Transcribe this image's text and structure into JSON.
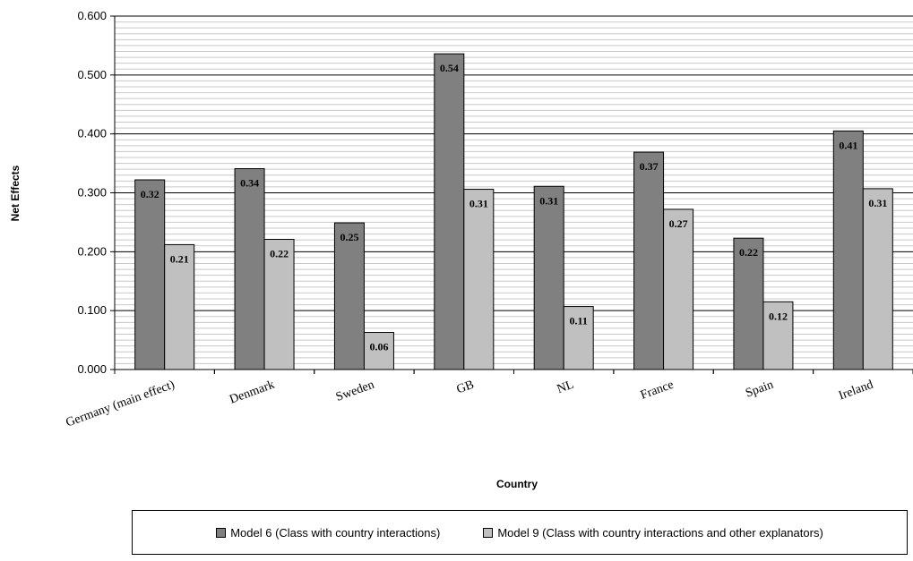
{
  "chart_data": {
    "type": "bar",
    "title": "",
    "xlabel": "Country",
    "ylabel": "Net Effects",
    "ylim": [
      0,
      0.6
    ],
    "yticks": [
      "0.000",
      "0.100",
      "0.200",
      "0.300",
      "0.400",
      "0.500",
      "0.600"
    ],
    "minor_gridlines": true,
    "legend_placement": "bottom",
    "categories": [
      "Germany (main effect)",
      "Denmark",
      "Sweden",
      "GB",
      "NL",
      "France",
      "Spain",
      "Ireland"
    ],
    "series": [
      {
        "name": "Model 6 (Class with country interactions)",
        "color": "#808080",
        "values": [
          0.322,
          0.341,
          0.249,
          0.536,
          0.311,
          0.369,
          0.223,
          0.405
        ],
        "labels": [
          "0.32",
          "0.34",
          "0.25",
          "0.54",
          "0.31",
          "0.37",
          "0.22",
          "0.41"
        ]
      },
      {
        "name": "Model 9 (Class with country interactions and other explanators)",
        "color": "#c0c0c0",
        "values": [
          0.212,
          0.221,
          0.063,
          0.306,
          0.107,
          0.272,
          0.115,
          0.307
        ],
        "labels": [
          "0.21",
          "0.22",
          "0.06",
          "0.31",
          "0.11",
          "0.27",
          "0.12",
          "0.31"
        ]
      }
    ]
  }
}
